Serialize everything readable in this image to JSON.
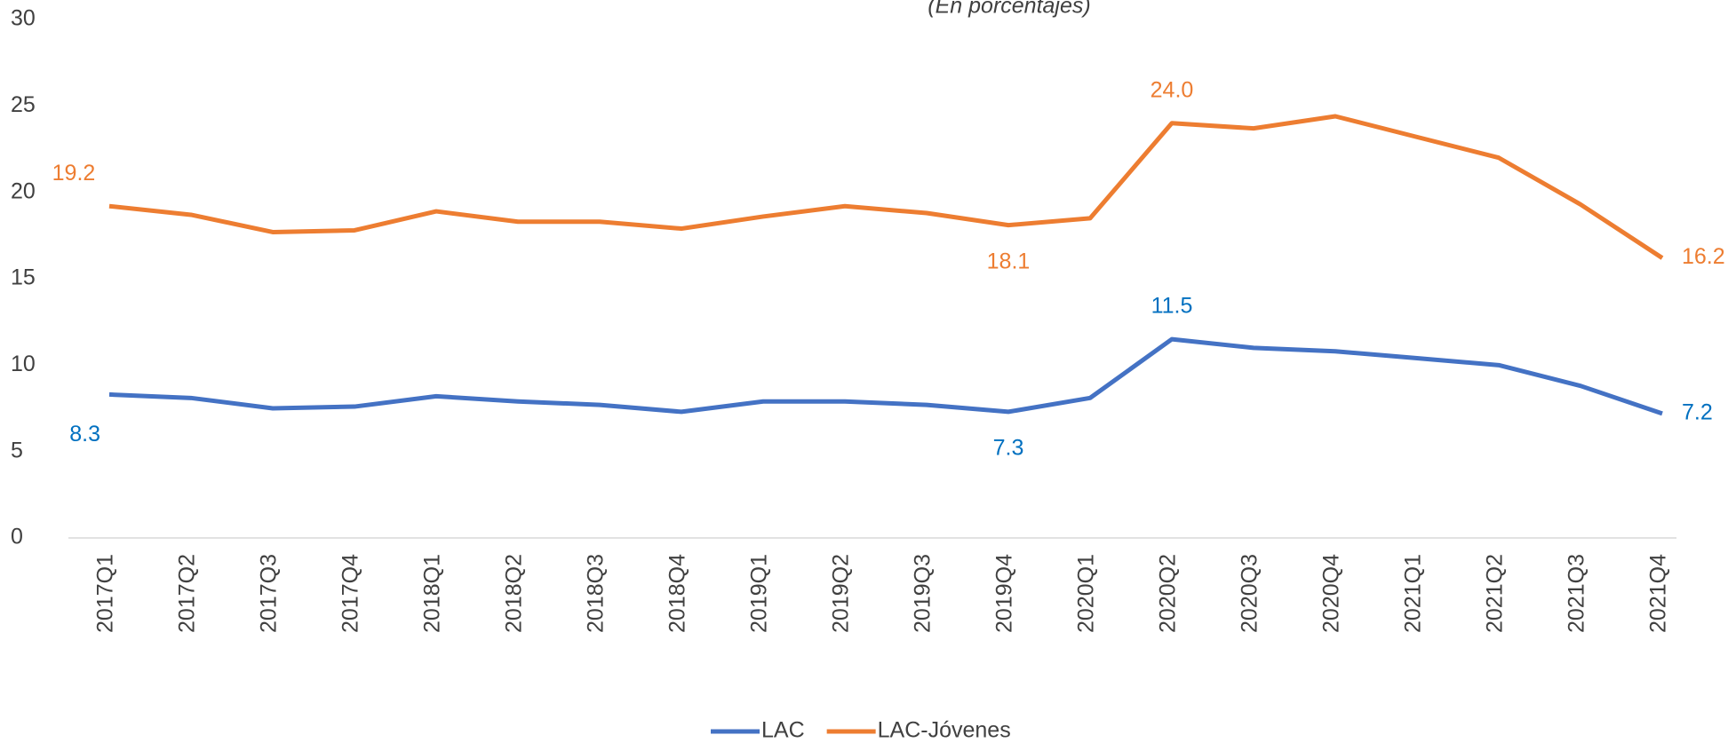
{
  "chart_data": {
    "type": "line",
    "subtitle": "(En porcentajes)",
    "categories": [
      "2017Q1",
      "2017Q2",
      "2017Q3",
      "2017Q4",
      "2018Q1",
      "2018Q2",
      "2018Q3",
      "2018Q4",
      "2019Q1",
      "2019Q2",
      "2019Q3",
      "2019Q4",
      "2020Q1",
      "2020Q2",
      "2020Q3",
      "2020Q4",
      "2021Q1",
      "2021Q2",
      "2021Q3",
      "2021Q4"
    ],
    "series": [
      {
        "name": "LAC",
        "color": "#4472c4",
        "label_color": "#0070c0",
        "values": [
          8.3,
          8.1,
          7.5,
          7.6,
          8.2,
          7.9,
          7.7,
          7.3,
          7.9,
          7.9,
          7.7,
          7.3,
          8.1,
          11.5,
          11.0,
          10.8,
          10.4,
          10.0,
          8.8,
          7.2
        ],
        "value_labels": [
          "8.3",
          null,
          null,
          null,
          null,
          null,
          null,
          null,
          null,
          null,
          null,
          "7.3",
          null,
          "11.5",
          null,
          null,
          null,
          null,
          null,
          "7.2"
        ]
      },
      {
        "name": "LAC-Jóvenes",
        "color": "#ed7d31",
        "label_color": "#ed7d31",
        "values": [
          19.2,
          18.7,
          17.7,
          17.8,
          18.9,
          18.3,
          18.3,
          17.9,
          18.6,
          19.2,
          18.8,
          18.1,
          18.5,
          24.0,
          23.7,
          24.4,
          23.2,
          22.0,
          19.3,
          16.2
        ],
        "value_labels": [
          "19.2",
          null,
          null,
          null,
          null,
          null,
          null,
          null,
          null,
          null,
          null,
          "18.1",
          null,
          "24.0",
          null,
          null,
          null,
          null,
          null,
          "16.2"
        ]
      }
    ],
    "ylim": [
      0,
      30
    ],
    "yticks": [
      0,
      5,
      10,
      15,
      20,
      25,
      30
    ],
    "grid": false,
    "legend": "bottom"
  }
}
